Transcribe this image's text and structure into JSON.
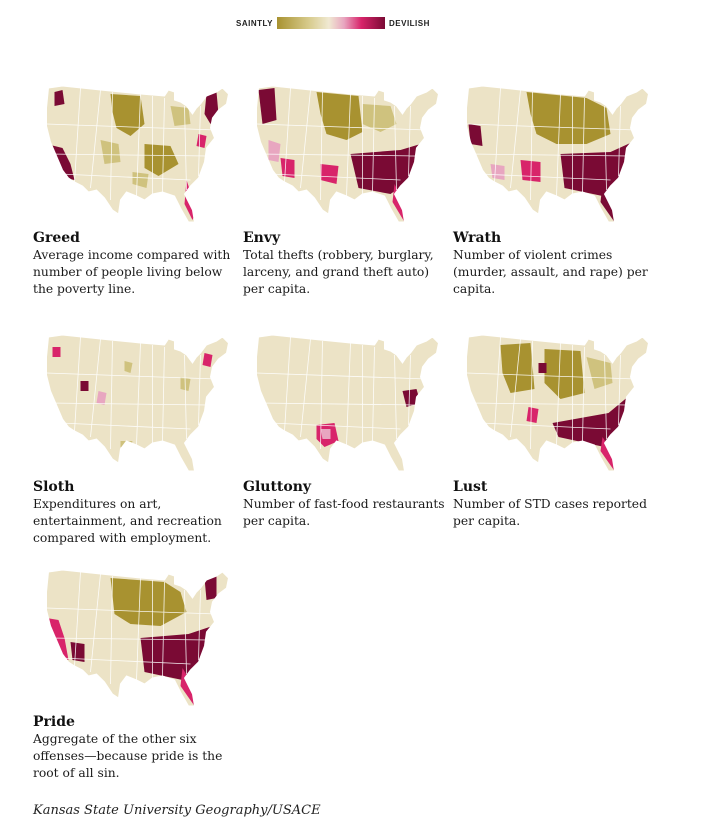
{
  "legend": {
    "left_label": "SAINTLY",
    "right_label": "DEVILISH",
    "colors": [
      "#a89230",
      "#d8cc8e",
      "#f0e9d2",
      "#e8a6c0",
      "#d8246a",
      "#7a0a34"
    ]
  },
  "colors": {
    "land": "#ece3c6",
    "border": "#ffffff",
    "saintly_dark": "#a89230",
    "saintly_light": "#cfc27e",
    "pink": "#e8a6c0",
    "red": "#d8246a",
    "devilish": "#7a0a34"
  },
  "maps": [
    {
      "title": "Greed",
      "description": "Average income compared with number of people living below the poverty line."
    },
    {
      "title": "Envy",
      "description": "Total thefts (robbery, burglary, larceny, and grand theft auto) per capita."
    },
    {
      "title": "Wrath",
      "description": "Number of violent crimes (murder, assault, and rape) per capita."
    },
    {
      "title": "Sloth",
      "description": "Expenditures on art, entertainment, and recreation compared with employment."
    },
    {
      "title": "Gluttony",
      "description": "Number of fast-food restaurants per capita."
    },
    {
      "title": "Lust",
      "description": "Number of STD cases reported per capita."
    },
    {
      "title": "Pride",
      "description": "Aggregate of the other six offenses—because pride is the root of all sin."
    }
  ],
  "source": "Kansas State University Geography/USACE"
}
